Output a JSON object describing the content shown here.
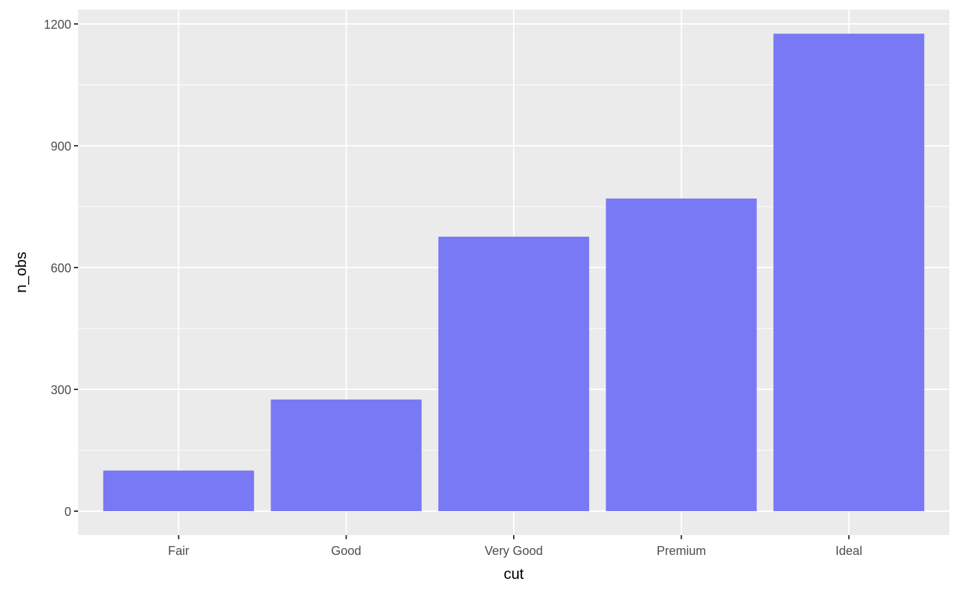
{
  "chart_data": {
    "type": "bar",
    "categories": [
      "Fair",
      "Good",
      "Very Good",
      "Premium",
      "Ideal"
    ],
    "values": [
      100,
      275,
      676,
      770,
      1176
    ],
    "xlabel": "cut",
    "ylabel": "n_obs",
    "ylim": [
      -58,
      1233
    ],
    "yticks": [
      0,
      300,
      600,
      900,
      1200
    ],
    "grid": true,
    "bar_color": "#7575F5",
    "panel_background": "#EBEBEB"
  }
}
